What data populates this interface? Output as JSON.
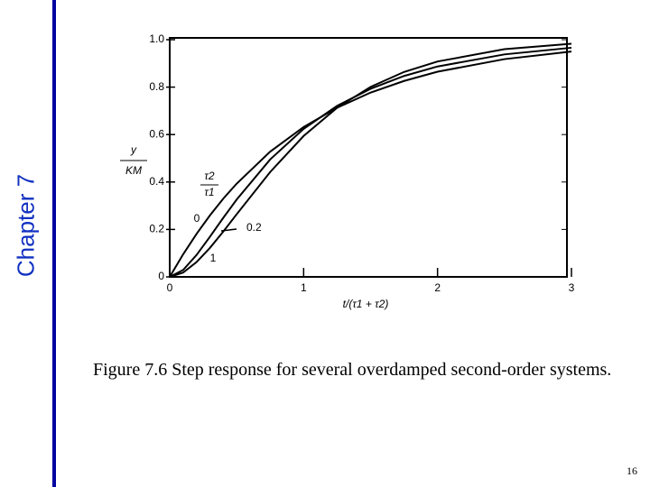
{
  "sidebar": "Chapter 7",
  "chart_data": {
    "type": "line",
    "x": [
      0,
      0.1,
      0.2,
      0.3,
      0.4,
      0.5,
      0.75,
      1,
      1.25,
      1.5,
      1.75,
      2,
      2.5,
      3
    ],
    "series": [
      {
        "name": "0",
        "color": "#000000",
        "values": [
          0,
          0.095,
          0.181,
          0.259,
          0.33,
          0.393,
          0.528,
          0.632,
          0.713,
          0.777,
          0.826,
          0.865,
          0.918,
          0.95
        ]
      },
      {
        "name": "0.2",
        "color": "#000000",
        "values": [
          0,
          0.029,
          0.092,
          0.169,
          0.249,
          0.326,
          0.495,
          0.624,
          0.721,
          0.793,
          0.847,
          0.887,
          0.938,
          0.966
        ]
      },
      {
        "name": "1",
        "color": "#000000",
        "values": [
          0,
          0.018,
          0.062,
          0.122,
          0.191,
          0.264,
          0.442,
          0.594,
          0.713,
          0.801,
          0.864,
          0.908,
          0.96,
          0.983
        ]
      }
    ],
    "ylabel_num": "y",
    "ylabel_den": "KM",
    "legend_title_num": "τ2",
    "legend_title_den": "τ1",
    "xlabel": "t/(τ1 + τ2)",
    "xlim": [
      0,
      3
    ],
    "ylim": [
      0,
      1
    ],
    "xticks": [
      0,
      1,
      2,
      3
    ],
    "yticks": [
      0,
      0.2,
      0.4,
      0.6,
      0.8,
      {
        "value": 1,
        "label": "1.0"
      }
    ],
    "grid": false
  },
  "caption": "Figure 7.6 Step response for several overdamped second-order systems.",
  "page_number": "16"
}
